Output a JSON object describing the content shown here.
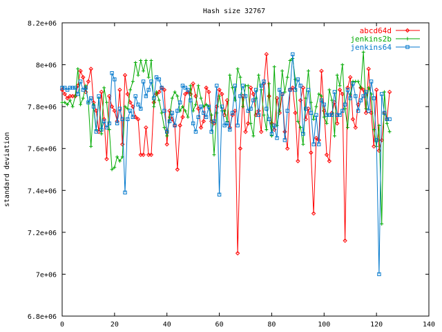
{
  "chart_data": {
    "type": "line",
    "title": "Hash size 32767",
    "xlabel": "",
    "ylabel": "standard deviation",
    "xlim": [
      0,
      140
    ],
    "ylim": [
      6800000,
      8200000
    ],
    "xticks": [
      0,
      20,
      40,
      60,
      80,
      100,
      120,
      140
    ],
    "xtick_labels": [
      "0",
      "20",
      "40",
      "60",
      "80",
      "100",
      "120",
      "140"
    ],
    "yticks": [
      6800000,
      7000000,
      7200000,
      7400000,
      7600000,
      7800000,
      8000000,
      8200000
    ],
    "ytick_labels": [
      "6.8e+06",
      "7e+06",
      "7.2e+06",
      "7.4e+06",
      "7.6e+06",
      "7.8e+06",
      "8e+06",
      "8.2e+06"
    ],
    "grid": false,
    "legend_position": "top-right",
    "x": [
      0,
      1,
      2,
      3,
      4,
      5,
      6,
      7,
      8,
      9,
      10,
      11,
      12,
      13,
      14,
      15,
      16,
      17,
      18,
      19,
      20,
      21,
      22,
      23,
      24,
      25,
      26,
      27,
      28,
      29,
      30,
      31,
      32,
      33,
      34,
      35,
      36,
      37,
      38,
      39,
      40,
      41,
      42,
      43,
      44,
      45,
      46,
      47,
      48,
      49,
      50,
      51,
      52,
      53,
      54,
      55,
      56,
      57,
      58,
      59,
      60,
      61,
      62,
      63,
      64,
      65,
      66,
      67,
      68,
      69,
      70,
      71,
      72,
      73,
      74,
      75,
      76,
      77,
      78,
      79,
      80,
      81,
      82,
      83,
      84,
      85,
      86,
      87,
      88,
      89,
      90,
      91,
      92,
      93,
      94,
      95,
      96,
      97,
      98,
      99,
      100,
      101,
      102,
      103,
      104,
      105,
      106,
      107,
      108,
      109,
      110,
      111,
      112,
      113,
      114,
      115,
      116,
      117,
      118,
      119,
      120,
      121,
      122,
      123,
      124,
      125
    ],
    "series": [
      {
        "name": "abcd64d",
        "color": "#ff0000",
        "marker": "diamond",
        "values": [
          7880000,
          7860000,
          7840000,
          7850000,
          7850000,
          7850000,
          7900000,
          7970000,
          7940000,
          7870000,
          7920000,
          7980000,
          7820000,
          7780000,
          7680000,
          7870000,
          7740000,
          7550000,
          7850000,
          7800000,
          7780000,
          7730000,
          7880000,
          7620000,
          7950000,
          7860000,
          7820000,
          7800000,
          7750000,
          7740000,
          7570000,
          7570000,
          7700000,
          7570000,
          7570000,
          7820000,
          7860000,
          7870000,
          7890000,
          7880000,
          7620000,
          7780000,
          7740000,
          7710000,
          7500000,
          7710000,
          7750000,
          7860000,
          7870000,
          7860000,
          7910000,
          7850000,
          7790000,
          7700000,
          7730000,
          7890000,
          7870000,
          7730000,
          7720000,
          7800000,
          7880000,
          7860000,
          7760000,
          7830000,
          7700000,
          7760000,
          7780000,
          7100000,
          7600000,
          7850000,
          7680000,
          7720000,
          7890000,
          7860000,
          7760000,
          7780000,
          7680000,
          7910000,
          8050000,
          7850000,
          7720000,
          7690000,
          7840000,
          7770000,
          7860000,
          7680000,
          7600000,
          7880000,
          7890000,
          7770000,
          7540000,
          7830000,
          7890000,
          7740000,
          7790000,
          7580000,
          7290000,
          7650000,
          7640000,
          7970000,
          7780000,
          7570000,
          7540000,
          7770000,
          7820000,
          7720000,
          7880000,
          7860000,
          7160000,
          7890000,
          7940000,
          7740000,
          7700000,
          7810000,
          7890000,
          7880000,
          7770000,
          7980000,
          7770000,
          7610000,
          7880000,
          7590000,
          7640000,
          7770000,
          7740000,
          7870000
        ]
      },
      {
        "name": "jenkins2b",
        "color": "#00aa00",
        "marker": "plus",
        "values": [
          7820000,
          7820000,
          7810000,
          7830000,
          7800000,
          7850000,
          7980000,
          7810000,
          7840000,
          7900000,
          7820000,
          7610000,
          7810000,
          7690000,
          7840000,
          7670000,
          7890000,
          7820000,
          7690000,
          7500000,
          7510000,
          7560000,
          7540000,
          7560000,
          7800000,
          7790000,
          7880000,
          7920000,
          8010000,
          7950000,
          8020000,
          7970000,
          8020000,
          7940000,
          8020000,
          7800000,
          7870000,
          7830000,
          7770000,
          7700000,
          7660000,
          7750000,
          7840000,
          7870000,
          7850000,
          7780000,
          7800000,
          7780000,
          7750000,
          7900000,
          7780000,
          7810000,
          7900000,
          7840000,
          7800000,
          7810000,
          7800000,
          7760000,
          7570000,
          7770000,
          7850000,
          7780000,
          7780000,
          7730000,
          7950000,
          7890000,
          7830000,
          7980000,
          7940000,
          7800000,
          7900000,
          7900000,
          7720000,
          7660000,
          7840000,
          7950000,
          7880000,
          7760000,
          7690000,
          7910000,
          7660000,
          7990000,
          7710000,
          7780000,
          7970000,
          7870000,
          7940000,
          8020000,
          8030000,
          7930000,
          7730000,
          7700000,
          7620000,
          7840000,
          7970000,
          7820000,
          7740000,
          7800000,
          7860000,
          7850000,
          7750000,
          7720000,
          7880000,
          7830000,
          7660000,
          7950000,
          7900000,
          8000000,
          7790000,
          7700000,
          7860000,
          7920000,
          7920000,
          7920000,
          7890000,
          8060000,
          7790000,
          7890000,
          7860000,
          7690000,
          7610000,
          7710000,
          7240000,
          7870000,
          7720000,
          7680000
        ]
      },
      {
        "name": "jenkins64",
        "color": "#0077cc",
        "marker": "square",
        "values": [
          7890000,
          7890000,
          7880000,
          7890000,
          7890000,
          7890000,
          7860000,
          7920000,
          7880000,
          7890000,
          7820000,
          7840000,
          7800000,
          7680000,
          7850000,
          7690000,
          7730000,
          7700000,
          7720000,
          7960000,
          7930000,
          7720000,
          7790000,
          7740000,
          7390000,
          7740000,
          7780000,
          7750000,
          7850000,
          7810000,
          7790000,
          7920000,
          7850000,
          7880000,
          7920000,
          7840000,
          7940000,
          7930000,
          7890000,
          7780000,
          7680000,
          7730000,
          7770000,
          7710000,
          7780000,
          7820000,
          7900000,
          7890000,
          7880000,
          7830000,
          7720000,
          7680000,
          7750000,
          7800000,
          7770000,
          7750000,
          7800000,
          7680000,
          7730000,
          7900000,
          7380000,
          7800000,
          7710000,
          7720000,
          7690000,
          7770000,
          7900000,
          7710000,
          7850000,
          7900000,
          7850000,
          7780000,
          7790000,
          7830000,
          7880000,
          7760000,
          7900000,
          7920000,
          7790000,
          7740000,
          7670000,
          7710000,
          7650000,
          7880000,
          7860000,
          7640000,
          7780000,
          7880000,
          8050000,
          7880000,
          7930000,
          7900000,
          7670000,
          7790000,
          7880000,
          7770000,
          7620000,
          7760000,
          7620000,
          7830000,
          7810000,
          7760000,
          7760000,
          7760000,
          7870000,
          7760000,
          7760000,
          7780000,
          7810000,
          7880000,
          7840000,
          7910000,
          7850000,
          7780000,
          7830000,
          7850000,
          7870000,
          7780000,
          7920000,
          7840000,
          7640000,
          7000000,
          7860000,
          7770000,
          7740000,
          7740000
        ]
      }
    ]
  }
}
